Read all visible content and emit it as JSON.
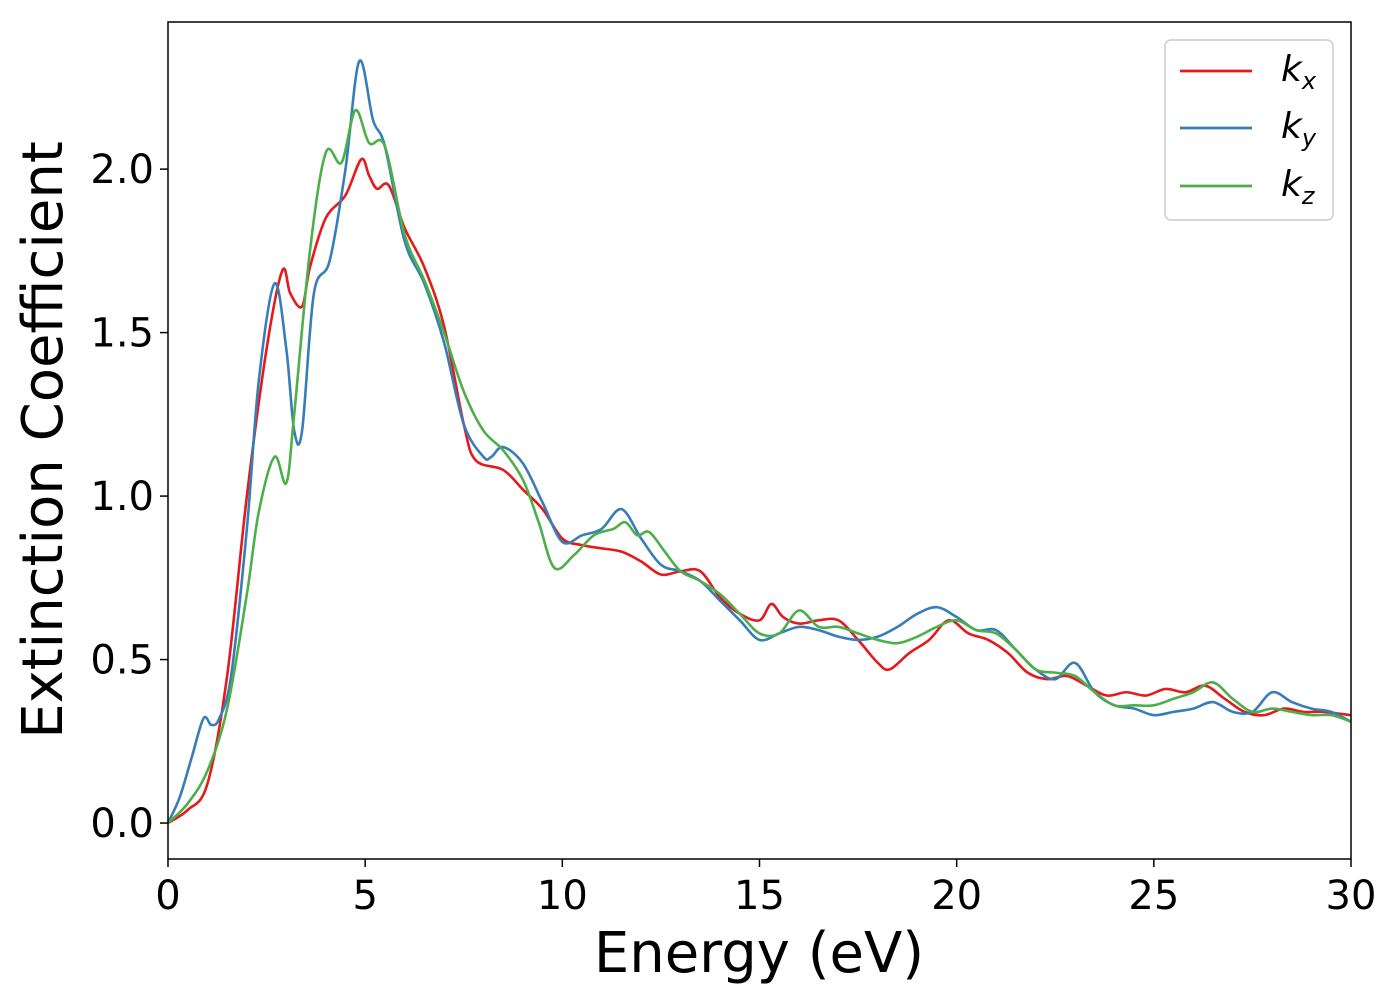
{
  "chart_data": {
    "type": "line",
    "xlabel": "Energy (eV)",
    "ylabel": "Extinction Coefficient",
    "xlim": [
      0,
      30
    ],
    "ylim": [
      -0.11,
      2.45
    ],
    "xticks": [
      0,
      5,
      10,
      15,
      20,
      25,
      30
    ],
    "xtick_labels": [
      "0",
      "5",
      "10",
      "15",
      "20",
      "25",
      "30"
    ],
    "yticks": [
      0.0,
      0.5,
      1.0,
      1.5,
      2.0
    ],
    "ytick_labels": [
      "0.0",
      "0.5",
      "1.0",
      "1.5",
      "2.0"
    ],
    "grid": false,
    "legend_position": "top-right",
    "series": [
      {
        "name": "k_x",
        "label_main": "k",
        "label_sub": "x",
        "color": "#e41a1c",
        "x": [
          0,
          0.5,
          1,
          1.5,
          2,
          2.5,
          2.9,
          3.1,
          3.4,
          3.6,
          4,
          4.5,
          4.9,
          5.1,
          5.3,
          5.6,
          6,
          6.5,
          7,
          7.5,
          7.8,
          8.5,
          9,
          9.5,
          10,
          10.5,
          11,
          11.5,
          12,
          12.5,
          13,
          13.5,
          14,
          14.5,
          15,
          15.3,
          15.6,
          16,
          16.5,
          17,
          17.5,
          18,
          18.3,
          18.8,
          19.3,
          19.8,
          20.3,
          20.8,
          21.3,
          21.8,
          22.3,
          22.8,
          23.3,
          23.8,
          24.3,
          24.8,
          25.3,
          25.8,
          26.3,
          26.8,
          27.3,
          27.8,
          28.3,
          28.8,
          29.3,
          30
        ],
        "y": [
          0,
          0.04,
          0.12,
          0.45,
          1.0,
          1.45,
          1.69,
          1.62,
          1.58,
          1.7,
          1.85,
          1.92,
          2.03,
          1.98,
          1.94,
          1.95,
          1.82,
          1.7,
          1.52,
          1.22,
          1.11,
          1.08,
          1.02,
          0.96,
          0.87,
          0.85,
          0.84,
          0.83,
          0.8,
          0.76,
          0.77,
          0.77,
          0.69,
          0.64,
          0.62,
          0.67,
          0.63,
          0.61,
          0.62,
          0.62,
          0.56,
          0.49,
          0.47,
          0.52,
          0.56,
          0.62,
          0.58,
          0.56,
          0.52,
          0.46,
          0.44,
          0.45,
          0.42,
          0.39,
          0.4,
          0.39,
          0.41,
          0.4,
          0.42,
          0.38,
          0.34,
          0.33,
          0.35,
          0.34,
          0.34,
          0.33
        ]
      },
      {
        "name": "k_y",
        "label_main": "k",
        "label_sub": "y",
        "color": "#377eb8",
        "x": [
          0,
          0.3,
          0.6,
          0.9,
          1.1,
          1.3,
          1.6,
          2,
          2.3,
          2.7,
          3.0,
          3.2,
          3.4,
          3.7,
          4.1,
          4.5,
          4.85,
          5.2,
          5.5,
          6,
          6.5,
          7,
          7.5,
          8,
          8.2,
          8.5,
          9,
          9.5,
          10,
          10.5,
          11,
          11.5,
          12,
          12.5,
          13,
          13.5,
          14,
          14.5,
          15,
          15.5,
          16,
          16.5,
          17,
          17.5,
          18,
          18.5,
          19,
          19.5,
          20,
          20.5,
          21,
          21.5,
          22,
          22.5,
          23,
          23.5,
          24,
          24.5,
          25,
          25.5,
          26,
          26.5,
          27,
          27.5,
          28,
          28.5,
          29,
          29.5,
          30
        ],
        "y": [
          0,
          0.08,
          0.2,
          0.32,
          0.3,
          0.32,
          0.45,
          0.9,
          1.35,
          1.65,
          1.45,
          1.2,
          1.2,
          1.62,
          1.72,
          2.0,
          2.33,
          2.15,
          2.07,
          1.78,
          1.65,
          1.47,
          1.22,
          1.12,
          1.12,
          1.15,
          1.1,
          0.98,
          0.86,
          0.88,
          0.9,
          0.96,
          0.87,
          0.79,
          0.77,
          0.74,
          0.68,
          0.62,
          0.56,
          0.58,
          0.6,
          0.59,
          0.57,
          0.56,
          0.57,
          0.6,
          0.64,
          0.66,
          0.63,
          0.59,
          0.59,
          0.53,
          0.47,
          0.44,
          0.49,
          0.4,
          0.36,
          0.35,
          0.33,
          0.34,
          0.35,
          0.37,
          0.34,
          0.34,
          0.4,
          0.37,
          0.35,
          0.34,
          0.31
        ]
      },
      {
        "name": "k_z",
        "label_main": "k",
        "label_sub": "z",
        "color": "#4daf4a",
        "x": [
          0,
          0.5,
          1,
          1.5,
          2,
          2.3,
          2.7,
          3.0,
          3.2,
          3.6,
          4.0,
          4.4,
          4.75,
          5.1,
          5.5,
          6,
          6.5,
          7,
          7.5,
          8,
          8.5,
          9,
          9.4,
          9.8,
          10.3,
          10.8,
          11.3,
          11.6,
          11.9,
          12.2,
          12.6,
          13,
          13.5,
          14,
          14.5,
          15,
          15.5,
          16,
          16.5,
          17,
          17.5,
          18,
          18.5,
          19,
          19.5,
          20,
          20.5,
          21,
          21.5,
          22,
          22.5,
          23,
          23.5,
          24,
          24.5,
          25,
          25.5,
          26,
          26.5,
          27,
          27.5,
          28,
          28.5,
          29,
          29.5,
          30
        ],
        "y": [
          0,
          0.06,
          0.16,
          0.35,
          0.7,
          0.95,
          1.12,
          1.04,
          1.25,
          1.75,
          2.05,
          2.02,
          2.18,
          2.08,
          2.07,
          1.8,
          1.66,
          1.5,
          1.32,
          1.2,
          1.14,
          1.05,
          0.92,
          0.78,
          0.82,
          0.88,
          0.9,
          0.92,
          0.88,
          0.89,
          0.83,
          0.77,
          0.74,
          0.7,
          0.64,
          0.58,
          0.58,
          0.65,
          0.6,
          0.6,
          0.58,
          0.56,
          0.55,
          0.57,
          0.6,
          0.62,
          0.59,
          0.58,
          0.53,
          0.47,
          0.46,
          0.45,
          0.4,
          0.36,
          0.36,
          0.36,
          0.38,
          0.4,
          0.43,
          0.38,
          0.34,
          0.35,
          0.34,
          0.33,
          0.33,
          0.31
        ]
      }
    ]
  }
}
